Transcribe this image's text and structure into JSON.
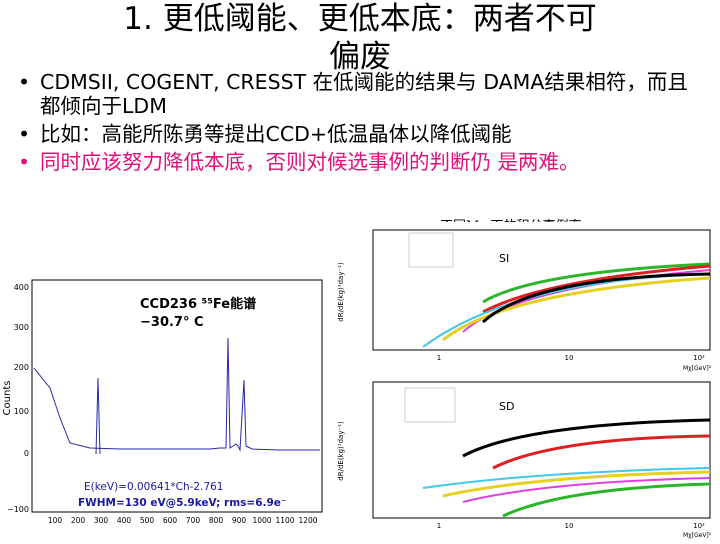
{
  "title": {
    "line1": "1. 更低阈能、更低本底：两者不可",
    "line2": "偏废"
  },
  "bullets": [
    {
      "marker": "•",
      "text": "CDMSII, COGENT, CRESST 在低阈能的结果与 DAMA结果相符，而且都倾向于LDM",
      "color": "#000000"
    },
    {
      "marker": "•",
      "text": "比如：高能所陈勇等提出CCD+低温晶体以降低阈能",
      "color": "#000000"
    },
    {
      "marker": "•",
      "text": "同时应该努力降低本底，否则对候选事例的判断仍 是两难。",
      "color": "#e0107a"
    }
  ],
  "caption": "不同Mw下的积分事例率",
  "spectrum": {
    "title": "CCD236 ⁵⁵Fe能谱",
    "temp": "−30.7° C",
    "ylabel": "Counts",
    "yticks": [
      "400",
      "300",
      "200",
      "100",
      "0",
      "−100"
    ],
    "xticks": [
      "100",
      "200",
      "300",
      "400",
      "500",
      "600",
      "700",
      "800",
      "900",
      "1000",
      "1100",
      "1200"
    ],
    "fit": "E(keV)=0.00641*Ch-2.761",
    "fwhm": "FWHM=130 eV@5.9keV; rms=6.9e⁻"
  },
  "si_plot": {
    "label": "SI",
    "ylabel": "dR/dE(kg)¹day⁻¹)",
    "xlabel": "Mχ[GeV]²",
    "xticks": [
      "1",
      "10",
      "10²"
    ]
  },
  "sd_plot": {
    "label": "SD",
    "ylabel": "dR/dE(kg)¹day⁻¹)",
    "xlabel": "Mχ[GeV]²",
    "xticks": [
      "1",
      "10",
      "10²"
    ]
  },
  "colors": {
    "accent": "#e0107a",
    "fit_text": "#1a1aa0"
  }
}
